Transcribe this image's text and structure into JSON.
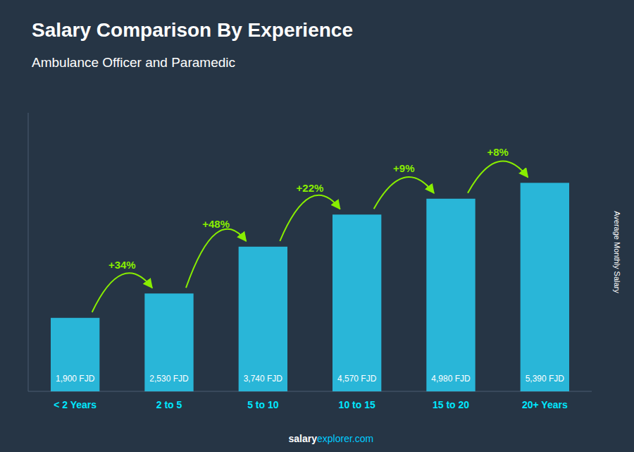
{
  "chart_data": {
    "type": "bar",
    "title": "Salary Comparison By Experience",
    "subtitle": "Ambulance Officer and Paramedic",
    "y_label": "Average Monthly Salary",
    "categories": [
      "< 2 Years",
      "2 to 5",
      "5 to 10",
      "10 to 15",
      "15 to 20",
      "20+ Years"
    ],
    "values": [
      1900,
      2530,
      3740,
      4570,
      4980,
      5390
    ],
    "value_labels": [
      "1,900 FJD",
      "2,530 FJD",
      "3,740 FJD",
      "4,570 FJD",
      "4,980 FJD",
      "5,390 FJD"
    ],
    "data_labels": true,
    "annotations": [
      "+34%",
      "+48%",
      "+22%",
      "+9%",
      "+8%"
    ],
    "footer": [
      "salary",
      "explorer.com"
    ],
    "color": "#29b6d8",
    "ylim": [
      0,
      7200
    ],
    "tick_labels": "x",
    "grid": false
  }
}
